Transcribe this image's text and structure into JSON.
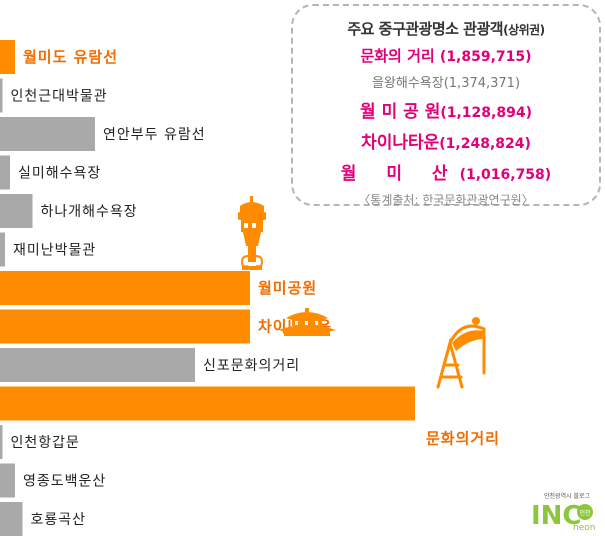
{
  "colors": {
    "highlight": "#ff8c00",
    "base": "#a9a9a9",
    "magenta": "#e2007a",
    "label_orange": "#f26c00"
  },
  "chart_data": {
    "type": "bar",
    "categories": [
      "월미도 유람선",
      "인천근대박물관",
      "연안부두 유람선",
      "실미해수욕장",
      "하나개해수욕장",
      "재미난박물관",
      "월미공원",
      "차이나타운",
      "신포문화의거리",
      "문화의거리",
      "인천항갑문",
      "영종도백운산",
      "호룡곡산"
    ],
    "values": [
      3,
      0.5,
      19,
      2,
      6.5,
      1,
      50,
      50,
      39,
      83,
      0.5,
      3,
      4.5
    ],
    "highlighted": [
      true,
      false,
      false,
      false,
      false,
      false,
      true,
      true,
      false,
      true,
      false,
      false,
      false
    ],
    "legend": {
      "title": "주요 중구관광명소 관광객",
      "title_note": "(상위권)",
      "rows": [
        {
          "name": "문화의 거리",
          "value": "(1,859,715)"
        },
        {
          "name": "을왕해수욕장",
          "value": "(1,374,371)"
        },
        {
          "name": "월 미 공 원",
          "value": "(1,128,894)"
        },
        {
          "name": "차이나타운",
          "value": "(1,248,824)"
        },
        {
          "name": "월 미 산",
          "value": "(1,016,758)"
        }
      ],
      "source": "〈통계출처: 한국문화관광연구원〉"
    }
  },
  "logo": {
    "top": "인천광역시 블로그",
    "main": "INC",
    "sub": "heon",
    "badge": "인천"
  }
}
